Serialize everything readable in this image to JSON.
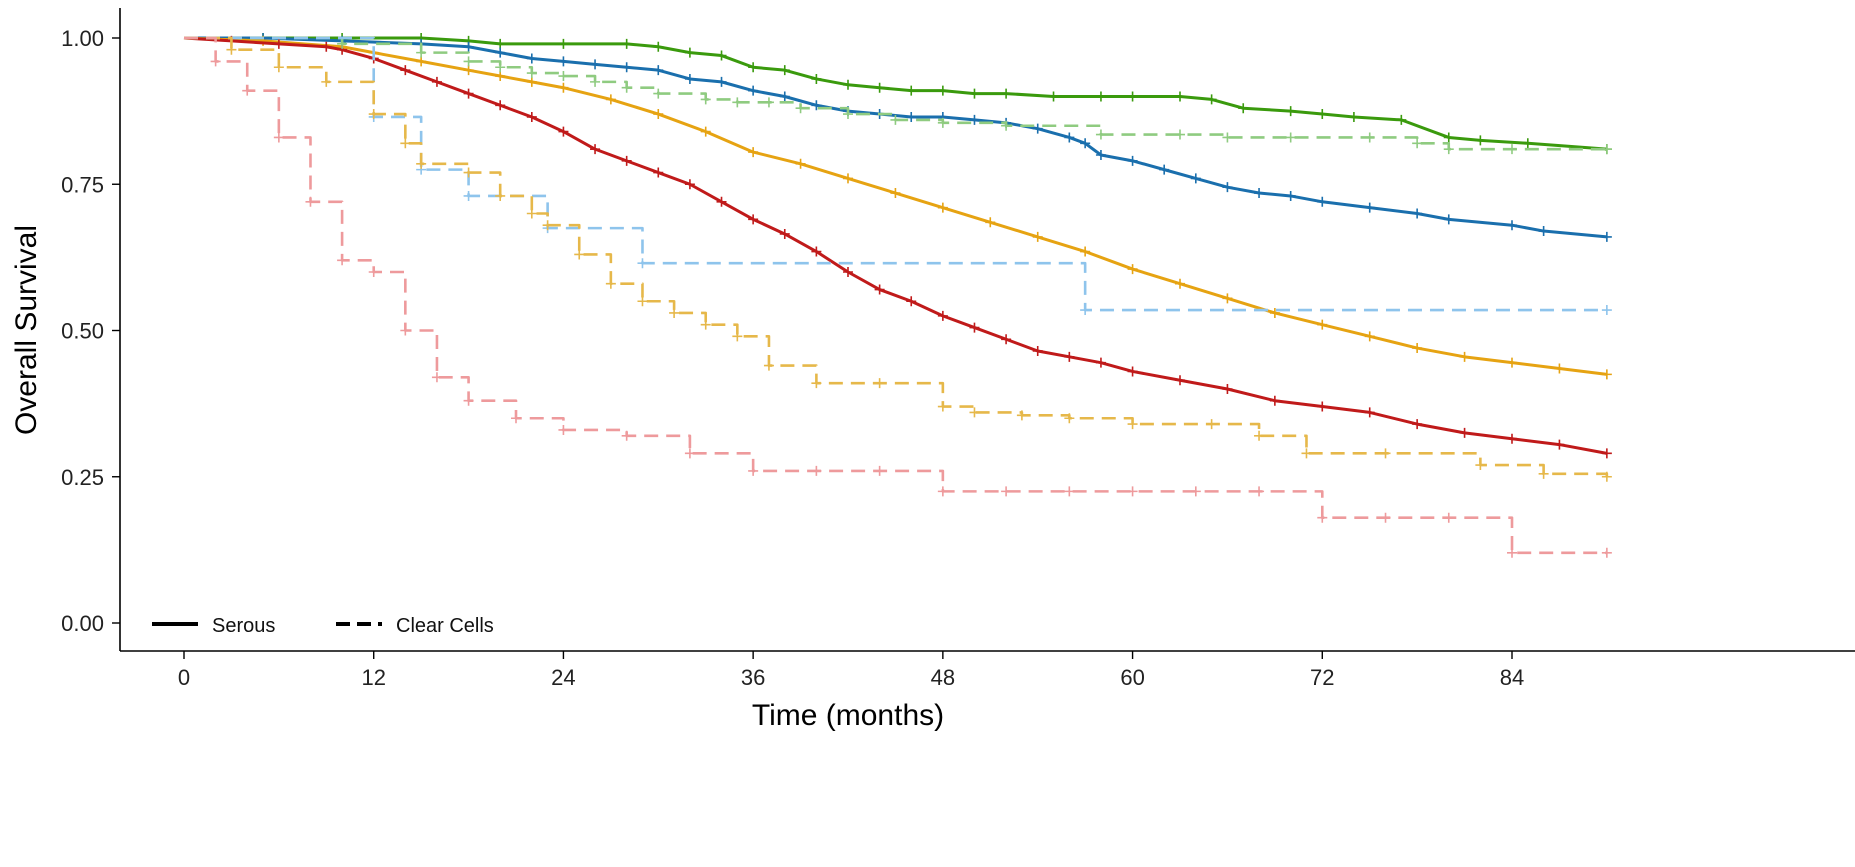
{
  "chart_data": {
    "type": "line",
    "subtype": "kaplan-meier",
    "xlabel": "Time (months)",
    "ylabel": "Overall Survival",
    "xlim": [
      0,
      90
    ],
    "ylim": [
      0,
      1.0
    ],
    "xticks": [
      0,
      12,
      24,
      36,
      48,
      60,
      72,
      84
    ],
    "xtick_labels": [
      "0",
      "12",
      "24",
      "36",
      "48",
      "60",
      "72",
      "84"
    ],
    "yticks": [
      0,
      0.25,
      0.5,
      0.75,
      1.0
    ],
    "ytick_labels": [
      "0.00",
      "0.25",
      "0.50",
      "0.75",
      "1.00"
    ],
    "grid": false,
    "legend": {
      "position": "bottom-left",
      "entries": [
        {
          "label": "Serous",
          "linestyle": "solid"
        },
        {
          "label": "Clear Cells",
          "linestyle": "dashed"
        }
      ]
    },
    "series": [
      {
        "color": "#3a9a0d",
        "linestyle": "solid",
        "x": [
          0,
          5,
          10,
          15,
          18,
          20,
          24,
          28,
          30,
          32,
          34,
          36,
          38,
          40,
          42,
          44,
          46,
          48,
          50,
          52,
          55,
          58,
          60,
          63,
          65,
          67,
          70,
          72,
          74,
          77,
          80,
          82,
          85,
          90
        ],
        "y": [
          1.0,
          1.0,
          1.0,
          1.0,
          0.995,
          0.99,
          0.99,
          0.99,
          0.985,
          0.975,
          0.97,
          0.95,
          0.945,
          0.93,
          0.92,
          0.915,
          0.91,
          0.91,
          0.905,
          0.905,
          0.9,
          0.9,
          0.9,
          0.9,
          0.895,
          0.88,
          0.875,
          0.87,
          0.865,
          0.86,
          0.83,
          0.825,
          0.82,
          0.81
        ]
      },
      {
        "color": "#1a6fad",
        "linestyle": "solid",
        "x": [
          0,
          5,
          10,
          15,
          18,
          20,
          22,
          24,
          26,
          28,
          30,
          32,
          34,
          36,
          38,
          40,
          42,
          44,
          46,
          48,
          50,
          52,
          54,
          56,
          57,
          58,
          60,
          62,
          64,
          66,
          68,
          70,
          72,
          75,
          78,
          80,
          84,
          86,
          90
        ],
        "y": [
          1.0,
          1.0,
          0.995,
          0.99,
          0.985,
          0.975,
          0.965,
          0.96,
          0.955,
          0.95,
          0.945,
          0.93,
          0.925,
          0.91,
          0.9,
          0.885,
          0.875,
          0.87,
          0.865,
          0.865,
          0.86,
          0.855,
          0.845,
          0.83,
          0.82,
          0.8,
          0.79,
          0.775,
          0.76,
          0.745,
          0.735,
          0.73,
          0.72,
          0.71,
          0.7,
          0.69,
          0.68,
          0.67,
          0.66
        ]
      },
      {
        "color": "#e6a312",
        "linestyle": "solid",
        "x": [
          0,
          5,
          10,
          12,
          15,
          18,
          20,
          22,
          24,
          27,
          30,
          33,
          36,
          39,
          42,
          45,
          48,
          51,
          54,
          57,
          60,
          63,
          66,
          69,
          72,
          75,
          78,
          81,
          84,
          87,
          90
        ],
        "y": [
          1.0,
          0.995,
          0.985,
          0.975,
          0.96,
          0.945,
          0.935,
          0.925,
          0.915,
          0.895,
          0.87,
          0.84,
          0.805,
          0.785,
          0.76,
          0.735,
          0.71,
          0.685,
          0.66,
          0.635,
          0.605,
          0.58,
          0.555,
          0.53,
          0.51,
          0.49,
          0.47,
          0.455,
          0.445,
          0.435,
          0.425
        ]
      },
      {
        "color": "#c01a1a",
        "linestyle": "solid",
        "x": [
          0,
          3,
          6,
          9,
          10,
          12,
          14,
          16,
          18,
          20,
          22,
          24,
          26,
          28,
          30,
          32,
          34,
          36,
          38,
          40,
          42,
          44,
          46,
          48,
          50,
          52,
          54,
          56,
          58,
          60,
          63,
          66,
          69,
          72,
          75,
          78,
          81,
          84,
          87,
          90
        ],
        "y": [
          1.0,
          0.995,
          0.99,
          0.985,
          0.98,
          0.965,
          0.945,
          0.925,
          0.905,
          0.885,
          0.865,
          0.84,
          0.81,
          0.79,
          0.77,
          0.75,
          0.72,
          0.69,
          0.665,
          0.635,
          0.6,
          0.57,
          0.55,
          0.525,
          0.505,
          0.485,
          0.465,
          0.455,
          0.445,
          0.43,
          0.415,
          0.4,
          0.38,
          0.37,
          0.36,
          0.34,
          0.325,
          0.315,
          0.305,
          0.29
        ]
      },
      {
        "color": "#8fcb80",
        "linestyle": "dashed",
        "step": true,
        "x": [
          0,
          10,
          15,
          18,
          20,
          22,
          24,
          26,
          28,
          30,
          33,
          35,
          37,
          39,
          42,
          45,
          48,
          52,
          58,
          63,
          66,
          70,
          75,
          78,
          80,
          84,
          90
        ],
        "y": [
          1.0,
          0.99,
          0.975,
          0.96,
          0.95,
          0.94,
          0.935,
          0.925,
          0.915,
          0.905,
          0.895,
          0.89,
          0.89,
          0.88,
          0.87,
          0.86,
          0.855,
          0.85,
          0.835,
          0.835,
          0.83,
          0.83,
          0.83,
          0.82,
          0.81,
          0.81,
          0.81
        ]
      },
      {
        "color": "#8ec4ec",
        "linestyle": "dashed",
        "step": true,
        "x": [
          0,
          12,
          15,
          18,
          23,
          29,
          57,
          90
        ],
        "y": [
          1.0,
          0.865,
          0.775,
          0.73,
          0.675,
          0.615,
          0.535,
          0.535
        ]
      },
      {
        "color": "#e6b84a",
        "linestyle": "dashed",
        "step": true,
        "x": [
          0,
          3,
          6,
          9,
          12,
          14,
          15,
          18,
          20,
          22,
          23,
          25,
          27,
          29,
          31,
          33,
          35,
          37,
          40,
          44,
          48,
          50,
          53,
          56,
          60,
          65,
          68,
          71,
          76,
          82,
          86,
          90
        ],
        "y": [
          1.0,
          0.98,
          0.95,
          0.925,
          0.87,
          0.82,
          0.785,
          0.77,
          0.73,
          0.7,
          0.68,
          0.63,
          0.58,
          0.55,
          0.53,
          0.51,
          0.49,
          0.44,
          0.41,
          0.41,
          0.37,
          0.36,
          0.355,
          0.35,
          0.34,
          0.34,
          0.32,
          0.29,
          0.29,
          0.27,
          0.255,
          0.25
        ]
      },
      {
        "color": "#ee9a9c",
        "linestyle": "dashed",
        "step": true,
        "x": [
          0,
          2,
          4,
          6,
          8,
          10,
          12,
          14,
          16,
          18,
          21,
          24,
          28,
          32,
          36,
          40,
          44,
          48,
          52,
          56,
          60,
          64,
          68,
          72,
          76,
          80,
          84,
          90
        ],
        "y": [
          1.0,
          0.96,
          0.91,
          0.83,
          0.72,
          0.62,
          0.6,
          0.5,
          0.42,
          0.38,
          0.35,
          0.33,
          0.32,
          0.29,
          0.26,
          0.26,
          0.26,
          0.225,
          0.225,
          0.225,
          0.225,
          0.225,
          0.225,
          0.18,
          0.18,
          0.18,
          0.12,
          0.12
        ]
      }
    ]
  }
}
